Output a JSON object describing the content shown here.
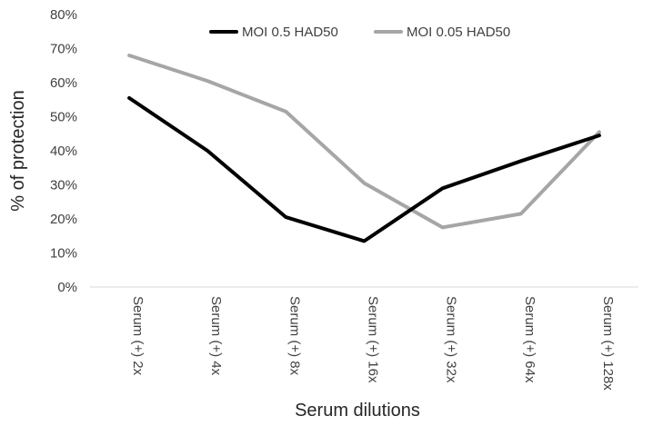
{
  "chart_data": {
    "type": "line",
    "title": "",
    "xlabel": "Serum dilutions",
    "ylabel": "% of protection",
    "categories": [
      "Serum (+) 2x",
      "Serum (+) 4x",
      "Serum (+) 8x",
      "Serum (+) 16x",
      "Serum (+) 32x",
      "Serum (+) 64x",
      "Serum (+) 128x"
    ],
    "ylim": [
      0,
      80
    ],
    "yticks": [
      0,
      10,
      20,
      30,
      40,
      50,
      60,
      70,
      80
    ],
    "ytick_labels": [
      "0%",
      "10%",
      "20%",
      "30%",
      "40%",
      "50%",
      "60%",
      "70%",
      "80%"
    ],
    "grid": false,
    "legend_position": "top",
    "series": [
      {
        "name": "MOI 0.5 HAD50",
        "color": "#000000",
        "values": [
          55.5,
          40,
          20.5,
          13.5,
          29,
          37,
          44.5
        ]
      },
      {
        "name": "MOI 0.05 HAD50",
        "color": "#a6a6a6",
        "values": [
          68,
          60.5,
          51.5,
          30.5,
          17.5,
          21.5,
          45.5
        ]
      }
    ]
  }
}
